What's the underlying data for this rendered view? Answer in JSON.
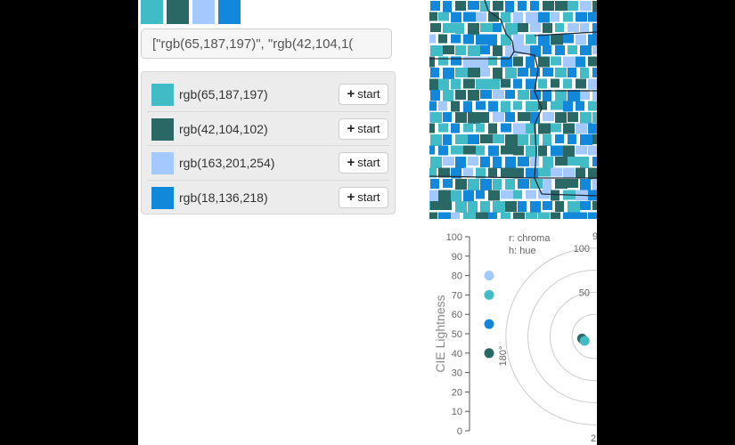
{
  "colors": [
    {
      "label": "rgb(65,187,197)",
      "hex": "#41bbc5"
    },
    {
      "label": "rgb(42,104,102)",
      "hex": "#2a6866"
    },
    {
      "label": "rgb(163,201,254)",
      "hex": "#a3c9fe"
    },
    {
      "label": "rgb(18,136,218)",
      "hex": "#1288da"
    }
  ],
  "code_box": {
    "text": "[\"rgb(65,187,197)\", \"rgb(42,104,1("
  },
  "list": {
    "button_label": "start",
    "button_icon": "plus-icon"
  },
  "map": {
    "description_icon": "county-map"
  },
  "chart_data": {
    "type": "scatter",
    "ylabel": "CIE Lightness",
    "y_ticks": [
      0,
      10,
      20,
      30,
      40,
      50,
      60,
      70,
      80,
      90,
      100
    ],
    "ylim": [
      0,
      100
    ],
    "lightness_points": [
      {
        "color": "rgb(163,201,254)",
        "value": 80
      },
      {
        "color": "rgb(65,187,197)",
        "value": 70
      },
      {
        "color": "rgb(18,136,218)",
        "value": 55
      },
      {
        "color": "rgb(42,104,102)",
        "value": 40
      }
    ],
    "polar": {
      "legend_r": "r: chroma",
      "legend_h": "h: hue",
      "angle_label_left": "180°",
      "angle_label_top": "9",
      "angle_label_bottom": "2",
      "ring_labels": [
        "100",
        "50"
      ],
      "ring_values": [
        100,
        50
      ],
      "rings": 4,
      "points": [
        {
          "color": "rgb(42,104,102)",
          "chroma": 14,
          "hue": 190
        },
        {
          "color": "rgb(65,187,197)",
          "chroma": 12,
          "hue": 205
        }
      ]
    }
  }
}
